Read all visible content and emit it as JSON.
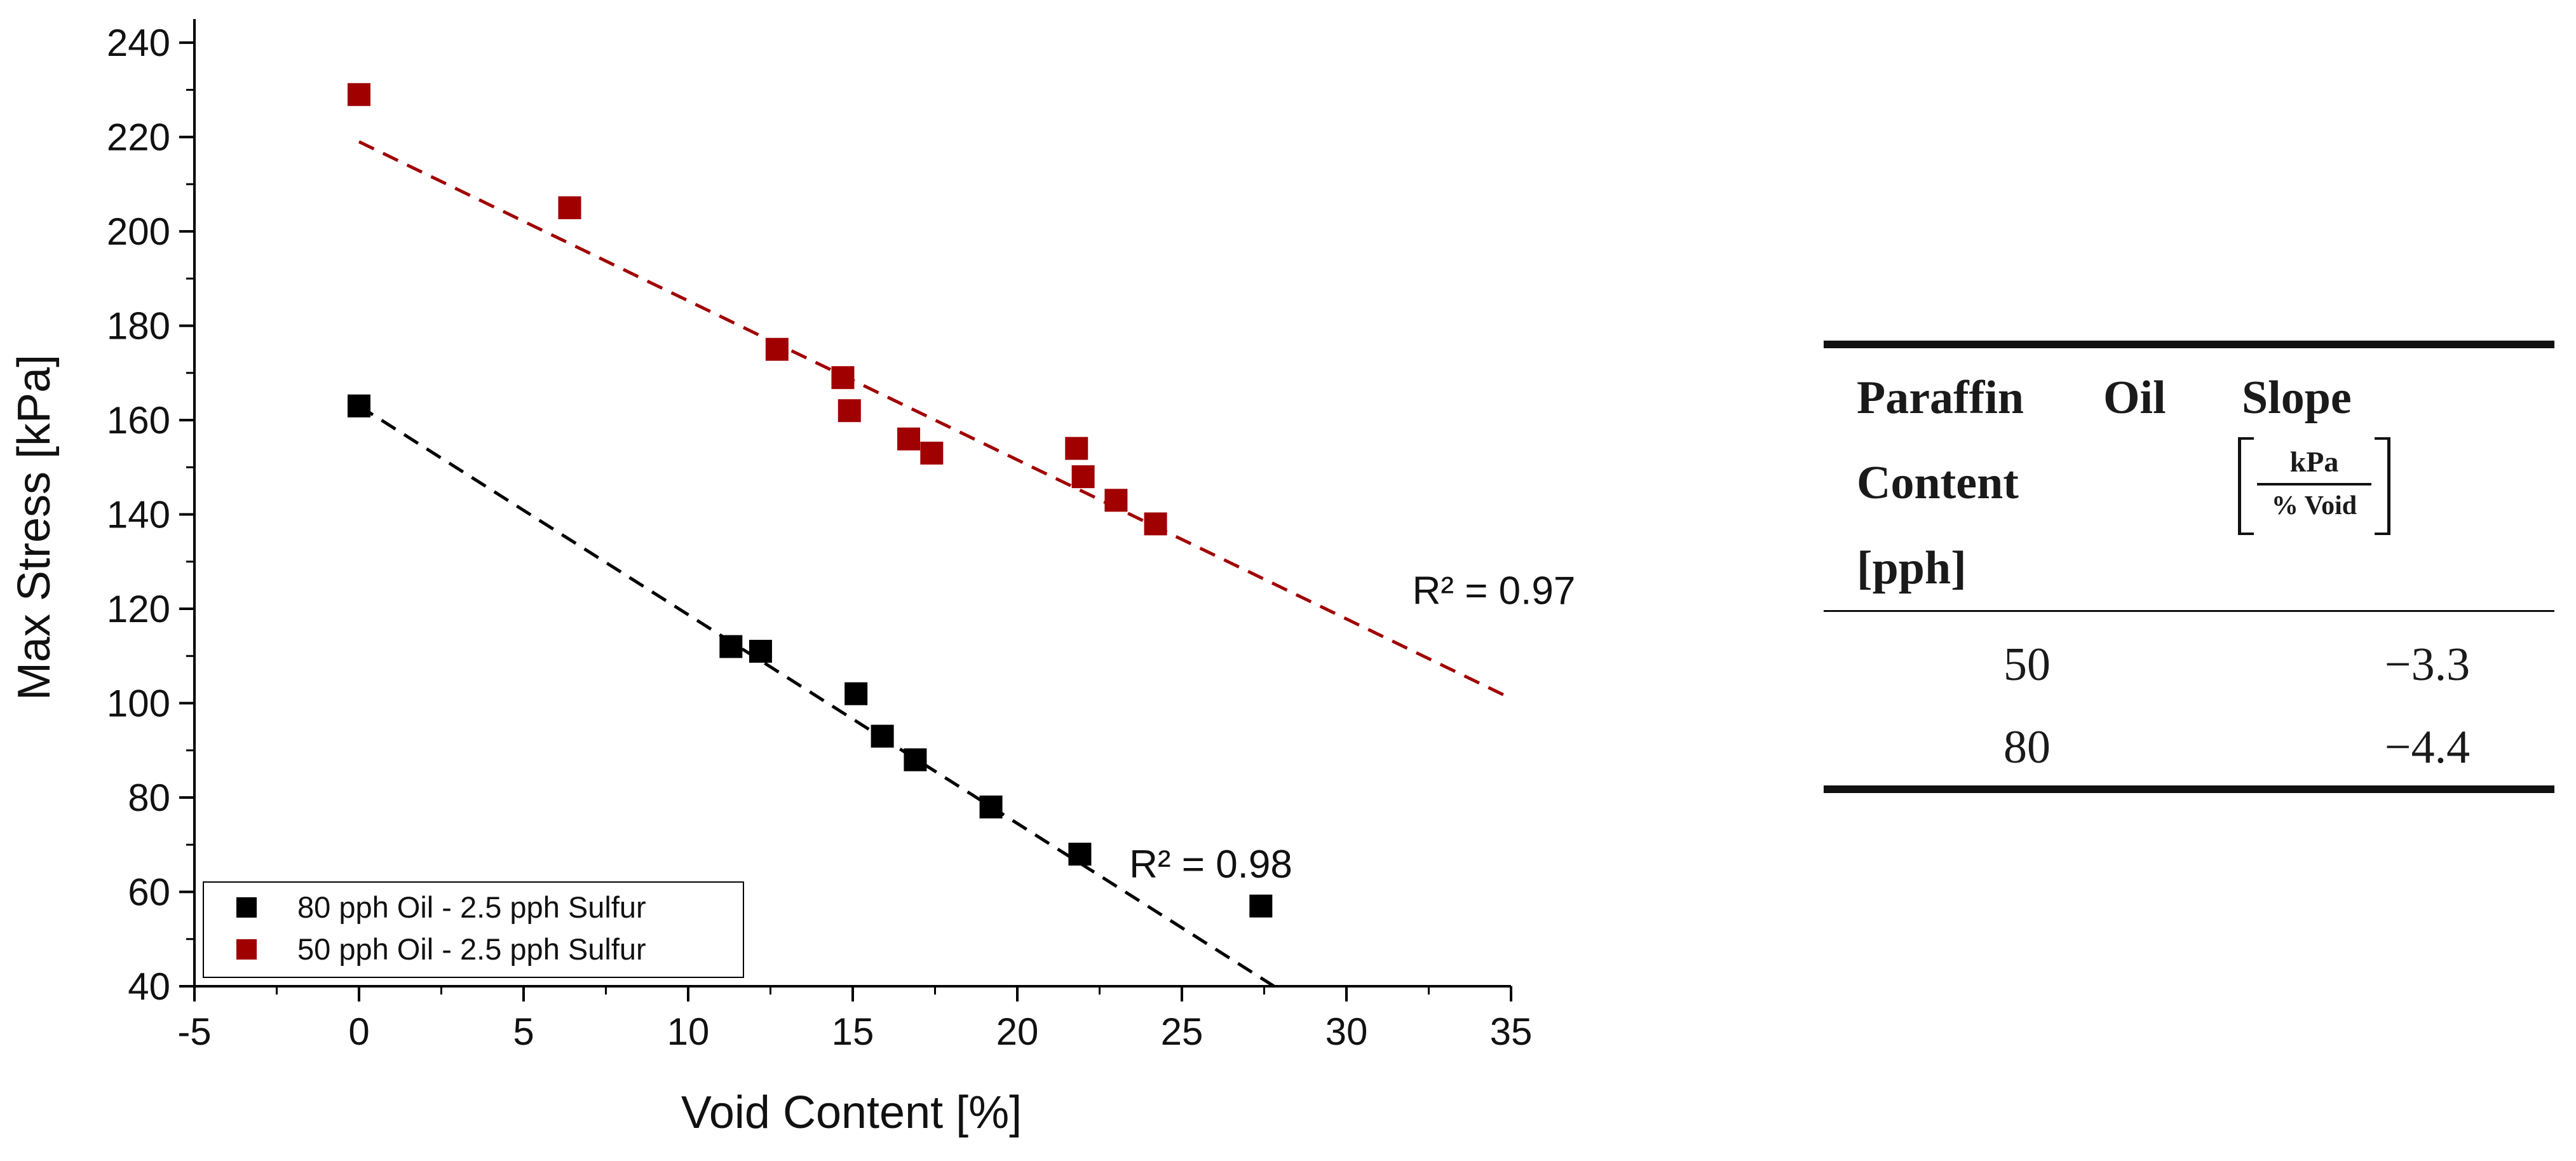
{
  "chart_data": {
    "type": "scatter",
    "xlabel": "Void Content [%]",
    "ylabel": "Max Stress [kPa]",
    "xlim": [
      -5,
      35
    ],
    "ylim": [
      40,
      245
    ],
    "x_ticks": [
      -5,
      0,
      5,
      10,
      15,
      20,
      25,
      30,
      35
    ],
    "y_ticks": [
      40,
      60,
      80,
      100,
      120,
      140,
      160,
      180,
      200,
      220,
      240
    ],
    "grid": false,
    "legend_position": "bottom-left",
    "series": [
      {
        "name": "80 pph Oil - 2.5 pph Sulfur",
        "color": "#000000",
        "points": [
          [
            0,
            163
          ],
          [
            11.3,
            112
          ],
          [
            12.2,
            111
          ],
          [
            15.1,
            102
          ],
          [
            15.9,
            93
          ],
          [
            16.9,
            88
          ],
          [
            19.2,
            78
          ],
          [
            21.9,
            68
          ],
          [
            27.4,
            57
          ]
        ],
        "fit": {
          "x": [
            0,
            27.8
          ],
          "y": [
            163,
            40
          ],
          "r2_label": "R² = 0.98",
          "r2_at": [
            23.4,
            63
          ]
        }
      },
      {
        "name": "50 pph Oil - 2.5 pph Sulfur",
        "color": "#a00000",
        "points": [
          [
            0,
            229
          ],
          [
            6.4,
            205
          ],
          [
            12.7,
            175
          ],
          [
            14.7,
            169
          ],
          [
            14.9,
            162
          ],
          [
            16.7,
            156
          ],
          [
            17.4,
            153
          ],
          [
            21.8,
            154
          ],
          [
            22.0,
            148
          ],
          [
            23.0,
            143
          ],
          [
            24.2,
            138
          ]
        ],
        "fit": {
          "x": [
            0,
            35
          ],
          "y": [
            219,
            101
          ],
          "r2_label": "R² = 0.97",
          "r2_at": [
            32,
            121
          ]
        }
      }
    ]
  },
  "table": {
    "headers": {
      "col1_line1": "Paraffin",
      "col1_line1b": "Oil",
      "col1_line2": "Content",
      "col1_line3": "[pph]",
      "col2": "Slope",
      "unit_num": "kPa",
      "unit_den": "% Void"
    },
    "rows": [
      {
        "content": "50",
        "slope": "−3.3"
      },
      {
        "content": "80",
        "slope": "−4.4"
      }
    ]
  }
}
